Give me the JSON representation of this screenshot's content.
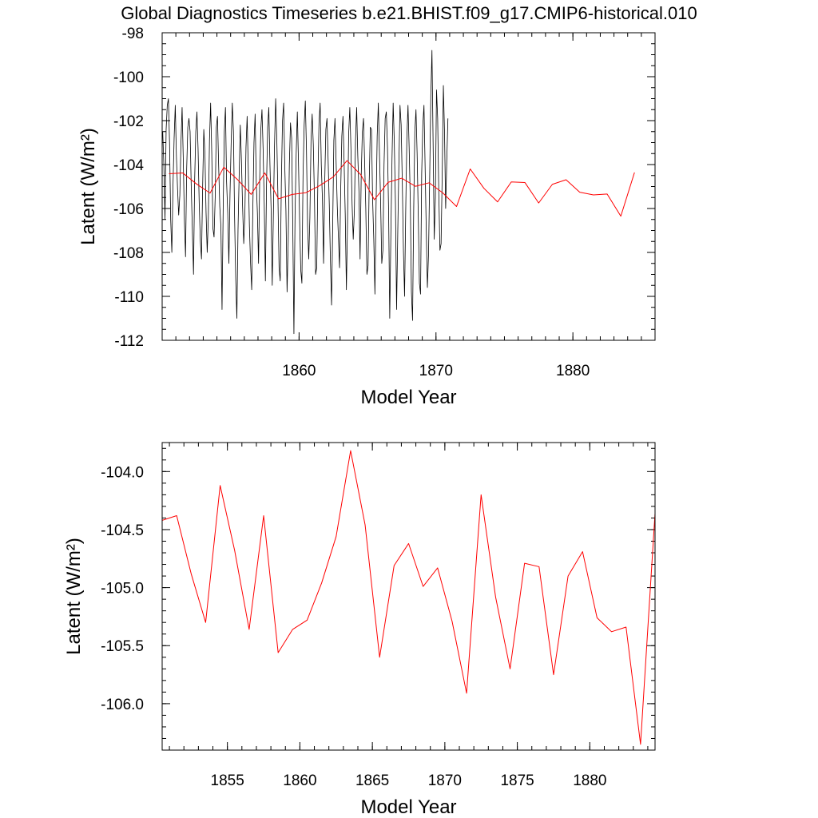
{
  "figure": {
    "title": "Global Diagnostics Timeseries b.e21.BHIST.f09_g17.CMIP6-historical.010"
  },
  "colors": {
    "monthly": "#000000",
    "annual": "#ff0000",
    "axis": "#000000"
  },
  "chart_data": [
    {
      "type": "line",
      "title": "Global Diagnostics Timeseries b.e21.BHIST.f09_g17.CMIP6-historical.010",
      "xlabel": "Model Year",
      "ylabel": "Latent (W/m²)",
      "xlim": [
        1850,
        1886
      ],
      "ylim": [
        -112,
        -98
      ],
      "xticks": [
        1860,
        1870,
        1880
      ],
      "xticklabels": [
        "1860",
        "1870",
        "1880"
      ],
      "yticks": [
        -98,
        -100,
        -102,
        -104,
        -106,
        -108,
        -110,
        -112
      ],
      "yticklabels": [
        "-98",
        "-100",
        "-102",
        "-104",
        "-106",
        "-108",
        "-110",
        "-112"
      ],
      "grid": false,
      "series": [
        {
          "color": "#000000",
          "x_start": 1850.04,
          "x_step": 0.08333,
          "values": [
            -102.5,
            -104.0,
            -106.5,
            -102.4,
            -101.3,
            -101.0,
            -103.0,
            -106.5,
            -108.0,
            -105.0,
            -102.8,
            -101.3,
            -103.6,
            -105.1,
            -106.3,
            -105.4,
            -103.0,
            -101.4,
            -103.7,
            -106.5,
            -108.2,
            -104.2,
            -102.3,
            -101.9,
            -102.5,
            -105.0,
            -107.0,
            -109.0,
            -104.7,
            -102.5,
            -101.6,
            -103.3,
            -105.8,
            -107.5,
            -108.3,
            -105.0,
            -102.4,
            -103.5,
            -106.2,
            -108.0,
            -106.4,
            -102.9,
            -101.2,
            -103.5,
            -106.9,
            -107.3,
            -105.5,
            -102.3,
            -101.8,
            -104.0,
            -105.9,
            -106.8,
            -110.6,
            -106.0,
            -102.5,
            -101.4,
            -104.8,
            -106.2,
            -108.5,
            -105.3,
            -103.0,
            -101.2,
            -102.5,
            -106.4,
            -109.2,
            -111.0,
            -107.0,
            -104.5,
            -102.2,
            -103.8,
            -105.9,
            -107.6,
            -106.3,
            -103.2,
            -101.8,
            -104.2,
            -106.8,
            -108.5,
            -109.7,
            -106.0,
            -103.0,
            -101.7,
            -104.8,
            -106.2,
            -108.5,
            -104.7,
            -102.4,
            -101.5,
            -103.3,
            -105.8,
            -109.3,
            -104.9,
            -102.3,
            -101.4,
            -104.0,
            -106.0,
            -109.5,
            -106.3,
            -103.1,
            -101.0,
            -102.8,
            -105.5,
            -108.7,
            -109.3,
            -104.8,
            -102.0,
            -101.2,
            -104.1,
            -106.1,
            -109.8,
            -107.5,
            -104.0,
            -102.1,
            -102.8,
            -106.8,
            -111.7,
            -106.3,
            -103.5,
            -101.6,
            -103.9,
            -106.5,
            -108.8,
            -109.4,
            -104.5,
            -102.2,
            -101.1,
            -103.3,
            -106.8,
            -108.3,
            -106.4,
            -102.9,
            -101.7,
            -103.1,
            -105.5,
            -109.0,
            -108.7,
            -104.7,
            -102.1,
            -101.2,
            -104.0,
            -105.6,
            -108.5,
            -104.8,
            -102.4,
            -101.9,
            -103.8,
            -105.8,
            -108.4,
            -110.4,
            -106.8,
            -102.9,
            -101.9,
            -103.9,
            -105.9,
            -107.3,
            -108.7,
            -105.2,
            -102.7,
            -101.8,
            -103.9,
            -106.3,
            -109.7,
            -106.6,
            -102.6,
            -101.4,
            -103.3,
            -105.8,
            -107.4,
            -106.1,
            -102.9,
            -101.4,
            -103.6,
            -105.2,
            -108.3,
            -104.5,
            -102.5,
            -101.9,
            -103.9,
            -106.0,
            -109.0,
            -108.6,
            -104.8,
            -102.3,
            -102.4,
            -105.6,
            -107.4,
            -109.9,
            -105.9,
            -102.7,
            -101.2,
            -103.5,
            -105.7,
            -108.5,
            -107.9,
            -104.0,
            -101.9,
            -101.6,
            -103.2,
            -106.1,
            -111.0,
            -107.1,
            -103.7,
            -101.2,
            -103.0,
            -105.8,
            -110.6,
            -107.2,
            -104.0,
            -101.3,
            -102.2,
            -104.8,
            -107.9,
            -110.0,
            -106.1,
            -102.8,
            -101.3,
            -103.2,
            -105.6,
            -109.8,
            -111.1,
            -106.0,
            -102.5,
            -101.5,
            -103.5,
            -106.3,
            -109.4,
            -109.9,
            -104.4,
            -102.2,
            -101.3,
            -104.1,
            -107.0,
            -109.6,
            -108.1,
            -104.6,
            -100.9,
            -98.8,
            -103.0,
            -107.4,
            -105.5,
            -100.6,
            -101.9,
            -105.3,
            -107.9,
            -107.6,
            -104.4,
            -100.4,
            -102.5,
            -106.0,
            -103.8,
            -101.9
          ]
        },
        {
          "color": "#ff0000",
          "x": [
            1850.5,
            1851.5,
            1852.5,
            1853.5,
            1854.5,
            1855.5,
            1856.5,
            1857.5,
            1858.5,
            1859.5,
            1860.5,
            1861.5,
            1862.5,
            1863.5,
            1864.5,
            1865.5,
            1866.5,
            1867.5,
            1868.5,
            1869.5,
            1870.5,
            1871.5,
            1872.5,
            1873.5,
            1874.5,
            1875.5,
            1876.5,
            1877.5,
            1878.5,
            1879.5,
            1880.5,
            1881.5,
            1882.5,
            1883.5,
            1884.5
          ],
          "values": [
            -104.42,
            -104.38,
            -104.88,
            -105.3,
            -104.12,
            -104.68,
            -105.36,
            -104.38,
            -105.56,
            -105.36,
            -105.28,
            -104.96,
            -104.56,
            -103.82,
            -104.46,
            -105.6,
            -104.81,
            -104.62,
            -104.99,
            -104.83,
            -105.29,
            -105.91,
            -104.2,
            -105.08,
            -105.7,
            -104.79,
            -104.82,
            -105.75,
            -104.9,
            -104.69,
            -105.26,
            -105.38,
            -105.34,
            -106.35,
            -104.36
          ]
        }
      ]
    },
    {
      "type": "line",
      "xlabel": "Model Year",
      "ylabel": "Latent (W/m²)",
      "xlim": [
        1850.5,
        1884.5
      ],
      "ylim": [
        -106.4,
        -103.75
      ],
      "xticks": [
        1855,
        1860,
        1865,
        1870,
        1875,
        1880
      ],
      "xticklabels": [
        "1855",
        "1860",
        "1865",
        "1870",
        "1875",
        "1880"
      ],
      "yticks": [
        -104.0,
        -104.5,
        -105.0,
        -105.5,
        -106.0
      ],
      "yticklabels": [
        "-104.0",
        "-104.5",
        "-105.0",
        "-105.5",
        "-106.0"
      ],
      "grid": false,
      "series": [
        {
          "color": "#ff0000",
          "x": [
            1850.5,
            1851.5,
            1852.5,
            1853.5,
            1854.5,
            1855.5,
            1856.5,
            1857.5,
            1858.5,
            1859.5,
            1860.5,
            1861.5,
            1862.5,
            1863.5,
            1864.5,
            1865.5,
            1866.5,
            1867.5,
            1868.5,
            1869.5,
            1870.5,
            1871.5,
            1872.5,
            1873.5,
            1874.5,
            1875.5,
            1876.5,
            1877.5,
            1878.5,
            1879.5,
            1880.5,
            1881.5,
            1882.5,
            1883.5,
            1884.5
          ],
          "values": [
            -104.42,
            -104.38,
            -104.88,
            -105.3,
            -104.12,
            -104.68,
            -105.36,
            -104.38,
            -105.56,
            -105.36,
            -105.28,
            -104.96,
            -104.56,
            -103.82,
            -104.46,
            -105.6,
            -104.81,
            -104.62,
            -104.99,
            -104.83,
            -105.29,
            -105.91,
            -104.2,
            -105.08,
            -105.7,
            -104.79,
            -104.82,
            -105.75,
            -104.9,
            -104.69,
            -105.26,
            -105.38,
            -105.34,
            -106.35,
            -104.36
          ]
        }
      ]
    }
  ]
}
